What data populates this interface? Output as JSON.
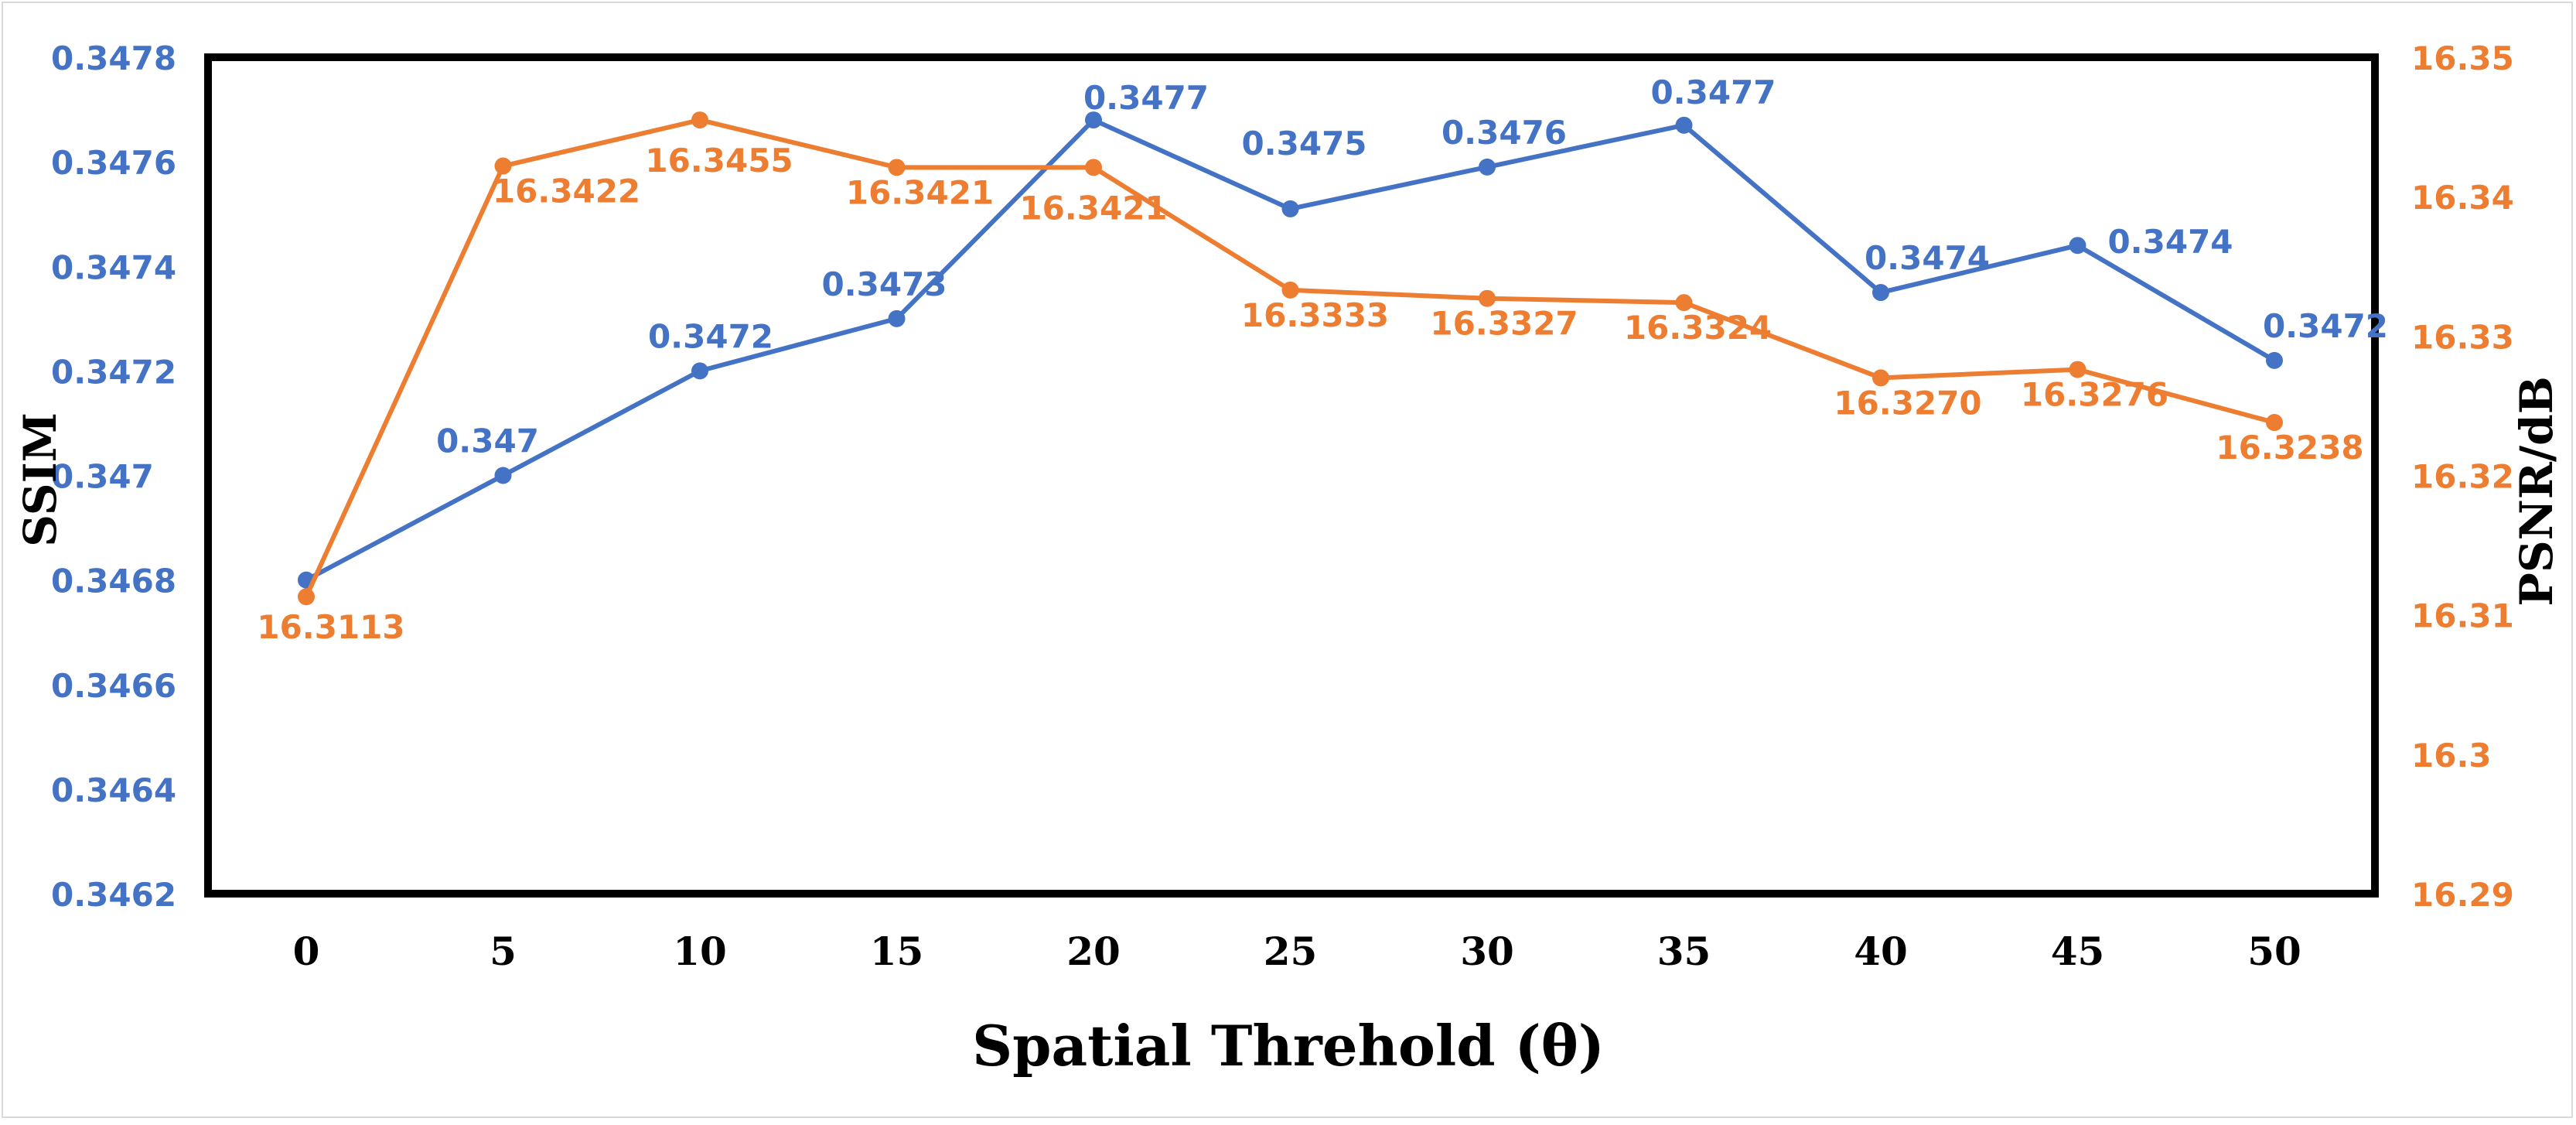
{
  "colors": {
    "ssim": "#4472C4",
    "psnr": "#ED7D31",
    "axis": "#000000",
    "background": "#FFFFFF"
  },
  "chart_data": {
    "type": "line",
    "title": "",
    "xlabel": "Spatial Threhold (θ)",
    "ylabel_left": "SSIM",
    "ylabel_right": "PSNR/dB",
    "categories": [
      "0",
      "5",
      "10",
      "15",
      "20",
      "25",
      "30",
      "35",
      "40",
      "45",
      "50"
    ],
    "y_left": {
      "min": 0.3462,
      "max": 0.3478,
      "ticks": [
        "0.3462",
        "0.3464",
        "0.3466",
        "0.3468",
        "0.347",
        "0.3472",
        "0.3474",
        "0.3476",
        "0.3478"
      ]
    },
    "y_right": {
      "min": 16.29,
      "max": 16.35,
      "ticks": [
        "16.29",
        "16.3",
        "16.31",
        "16.32",
        "16.33",
        "16.34",
        "16.35"
      ]
    },
    "grid": false,
    "series": [
      {
        "name": "SSIM",
        "axis": "left",
        "values": [
          0.3468,
          0.347,
          0.3472,
          0.3473,
          0.34768,
          0.34751,
          0.34759,
          0.34767,
          0.34735,
          0.34744,
          0.34722
        ],
        "labels": [
          "",
          "0.347",
          "0.3472",
          "0.3473",
          "0.3477",
          "0.3475",
          "0.3476",
          "0.3477",
          "0.3474",
          "0.3474",
          "0.3472"
        ]
      },
      {
        "name": "PSNR",
        "axis": "right",
        "values": [
          16.3113,
          16.3422,
          16.3455,
          16.3421,
          16.3421,
          16.3333,
          16.3327,
          16.3324,
          16.327,
          16.3276,
          16.3238
        ],
        "labels": [
          "16.3113",
          "16.3422",
          "16.3455",
          "16.3421",
          "16.3421",
          "16.3333",
          "16.3327",
          "16.3324",
          "16.3270",
          "16.3276",
          "16.3238"
        ]
      }
    ]
  }
}
